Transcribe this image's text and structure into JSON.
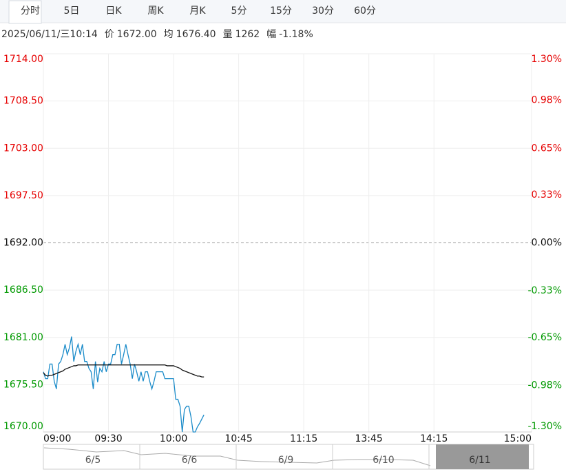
{
  "tabs": [
    "分时",
    "5日",
    "日K",
    "周K",
    "月K",
    "5分",
    "15分",
    "30分",
    "60分"
  ],
  "info": {
    "datetime": "2025/06/11/三10:14",
    "price_label": "价",
    "price": "1672.00",
    "avg_label": "均",
    "avg": "1676.40",
    "volume_label": "量",
    "volume": "1262",
    "change_label": "幅",
    "change": "-1.18%"
  },
  "navigator": {
    "labels": [
      "6/5",
      "6/6",
      "6/9",
      "6/10",
      "6/11"
    ]
  },
  "chart_data": {
    "type": "line",
    "x": [
      0,
      1,
      2,
      3,
      4,
      5,
      6,
      7,
      8,
      9,
      10,
      11,
      12,
      13,
      14,
      15,
      16,
      17,
      18,
      19,
      20,
      21,
      22,
      23,
      24,
      25,
      26,
      27,
      28,
      29,
      30,
      31,
      32,
      33,
      34,
      35,
      36,
      37,
      38,
      39,
      40,
      41,
      42,
      43,
      44,
      45,
      46,
      47,
      48,
      49,
      50,
      51,
      52,
      53,
      54,
      55,
      56,
      57,
      58,
      59,
      60,
      61,
      62,
      63,
      64,
      65,
      66,
      67,
      68,
      69,
      70,
      71,
      72,
      73,
      74
    ],
    "series": [
      {
        "name": "价",
        "color": "#1a8bc9",
        "values": [
          1677.0,
          1676.2,
          1676.2,
          1677.9,
          1677.9,
          1675.9,
          1675.0,
          1677.9,
          1678.2,
          1679.0,
          1680.2,
          1679.0,
          1679.8,
          1681.1,
          1678.2,
          1679.4,
          1680.2,
          1679.0,
          1680.2,
          1678.2,
          1678.2,
          1677.4,
          1677.0,
          1675.0,
          1678.2,
          1675.8,
          1677.4,
          1677.0,
          1678.2,
          1677.0,
          1677.9,
          1677.9,
          1679.0,
          1679.0,
          1680.2,
          1680.2,
          1677.9,
          1679.0,
          1680.2,
          1679.0,
          1677.9,
          1676.2,
          1677.9,
          1677.0,
          1675.9,
          1677.0,
          1675.9,
          1677.0,
          1677.0,
          1675.9,
          1675.0,
          1675.9,
          1677.0,
          1677.0,
          1677.0,
          1677.0,
          1676.2,
          1676.2,
          1676.2,
          1676.2,
          1676.2,
          1673.8,
          1673.8,
          1673.0,
          1670.0,
          1672.6,
          1673.0,
          1673.0,
          1671.8,
          1670.0,
          1670.0,
          1670.6,
          1671.0,
          1671.5,
          1672.0
        ]
      },
      {
        "name": "均",
        "color": "#111111",
        "values": [
          1676.9,
          1676.6,
          1676.5,
          1676.6,
          1676.6,
          1676.7,
          1676.8,
          1676.9,
          1677.0,
          1677.1,
          1677.3,
          1677.4,
          1677.5,
          1677.6,
          1677.7,
          1677.7,
          1677.8,
          1677.8,
          1677.8,
          1677.8,
          1677.8,
          1677.8,
          1677.8,
          1677.8,
          1677.8,
          1677.8,
          1677.8,
          1677.8,
          1677.8,
          1677.8,
          1677.8,
          1677.8,
          1677.8,
          1677.8,
          1677.8,
          1677.8,
          1677.8,
          1677.8,
          1677.8,
          1677.8,
          1677.8,
          1677.8,
          1677.8,
          1677.8,
          1677.8,
          1677.8,
          1677.8,
          1677.8,
          1677.8,
          1677.8,
          1677.8,
          1677.8,
          1677.8,
          1677.8,
          1677.8,
          1677.8,
          1677.8,
          1677.7,
          1677.7,
          1677.7,
          1677.7,
          1677.6,
          1677.5,
          1677.4,
          1677.2,
          1677.1,
          1677.0,
          1676.9,
          1676.8,
          1676.7,
          1676.6,
          1676.5,
          1676.5,
          1676.4,
          1676.4
        ]
      }
    ],
    "xlim": [
      0,
      225
    ],
    "xticks": [
      {
        "value": 0,
        "label": "09:00"
      },
      {
        "value": 30,
        "label": "09:30"
      },
      {
        "value": 60,
        "label": "10:00"
      },
      {
        "value": 90,
        "label": "10:45"
      },
      {
        "value": 120,
        "label": "11:15"
      },
      {
        "value": 150,
        "label": "13:45"
      },
      {
        "value": 180,
        "label": "14:15"
      },
      {
        "value": 225,
        "label": "15:00"
      }
    ],
    "ylim": [
      1670,
      1714
    ],
    "yticks": [
      {
        "value": 1714,
        "label": "1714.00"
      },
      {
        "value": 1708.5,
        "label": "1708.50"
      },
      {
        "value": 1703,
        "label": "1703.00"
      },
      {
        "value": 1697.5,
        "label": "1697.50"
      },
      {
        "value": 1692,
        "label": "1692.00"
      },
      {
        "value": 1686.5,
        "label": "1686.50"
      },
      {
        "value": 1681,
        "label": "1681.00"
      },
      {
        "value": 1675.5,
        "label": "1675.50"
      },
      {
        "value": 1670,
        "label": "1670.00"
      }
    ],
    "y2lim": [
      -1.3,
      1.3
    ],
    "y2ticks": [
      {
        "value": 1.3,
        "label": "1.30%"
      },
      {
        "value": 0.98,
        "label": "0.98%"
      },
      {
        "value": 0.65,
        "label": "0.65%"
      },
      {
        "value": 0.33,
        "label": "0.33%"
      },
      {
        "value": 0,
        "label": "0.00%"
      },
      {
        "value": -0.33,
        "label": "-0.33%"
      },
      {
        "value": -0.65,
        "label": "-0.65%"
      },
      {
        "value": -0.98,
        "label": "-0.98%"
      },
      {
        "value": -1.3,
        "label": "-1.30%"
      }
    ],
    "reference_line": 1692,
    "up_color": "#e60000",
    "down_color": "#009900",
    "grid": true
  }
}
